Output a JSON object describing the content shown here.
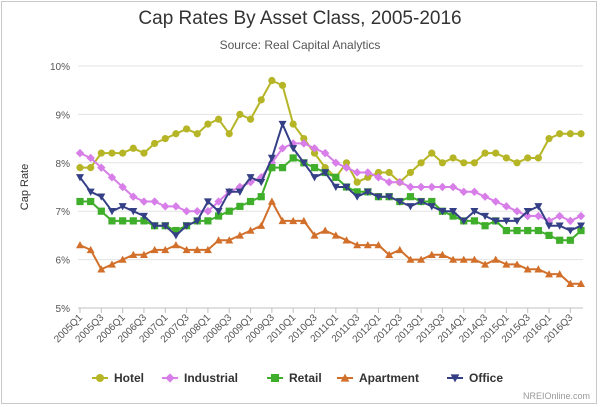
{
  "chart_data": {
    "type": "line",
    "title": "Cap Rates By Asset Class, 2005-2016",
    "subtitle": "Source: Real Capital Analytics",
    "ylabel": "Cap Rate",
    "xlabel": "",
    "ylim": [
      5,
      10
    ],
    "yticks": [
      "5%",
      "6%",
      "7%",
      "8%",
      "9%",
      "10%"
    ],
    "grid": true,
    "legend_position": "bottom",
    "credit": "NREIOnline.com",
    "x": [
      "2005Q1",
      "2005Q2",
      "2005Q3",
      "2005Q4",
      "2006Q1",
      "2006Q2",
      "2006Q3",
      "2006Q4",
      "2007Q1",
      "2007Q2",
      "2007Q3",
      "2007Q4",
      "2008Q1",
      "2008Q2",
      "2008Q3",
      "2008Q4",
      "2009Q1",
      "2009Q2",
      "2009Q3",
      "2009Q4",
      "2010Q1",
      "2010Q2",
      "2010Q3",
      "2010Q4",
      "2011Q1",
      "2011Q2",
      "2011Q3",
      "2011Q4",
      "2012Q1",
      "2012Q2",
      "2012Q3",
      "2012Q4",
      "2013Q1",
      "2013Q2",
      "2013Q3",
      "2013Q4",
      "2014Q1",
      "2014Q2",
      "2014Q3",
      "2014Q4",
      "2015Q1",
      "2015Q2",
      "2015Q3",
      "2015Q4",
      "2016Q1",
      "2016Q2",
      "2016Q3",
      "2016Q4"
    ],
    "x_tick_labels": [
      "2005Q1",
      "2005Q3",
      "2006Q1",
      "2006Q3",
      "2007Q1",
      "2007Q3",
      "2008Q1",
      "2008Q3",
      "2009Q1",
      "2009Q3",
      "2010Q1",
      "2010Q3",
      "2011Q1",
      "2011Q3",
      "2012Q1",
      "2012Q3",
      "2013Q1",
      "2013Q3",
      "2014Q1",
      "2014Q3",
      "2015Q1",
      "2015Q3",
      "2016Q1",
      "2016Q3"
    ],
    "series": [
      {
        "name": "Hotel",
        "color": "#b5b526",
        "marker": "circle",
        "values": [
          7.9,
          7.9,
          8.2,
          8.2,
          8.2,
          8.3,
          8.2,
          8.4,
          8.5,
          8.6,
          8.7,
          8.6,
          8.8,
          8.9,
          8.6,
          9.0,
          8.9,
          9.3,
          9.7,
          9.6,
          8.8,
          8.5,
          8.2,
          7.9,
          7.7,
          8.0,
          7.6,
          7.7,
          7.8,
          7.8,
          7.6,
          7.8,
          8.0,
          8.2,
          8.0,
          8.1,
          8.0,
          8.0,
          8.2,
          8.2,
          8.1,
          8.0,
          8.1,
          8.1,
          8.5,
          8.6,
          8.6,
          8.6
        ]
      },
      {
        "name": "Industrial",
        "color": "#d77ee8",
        "marker": "diamond",
        "values": [
          8.2,
          8.1,
          7.9,
          7.7,
          7.5,
          7.3,
          7.2,
          7.2,
          7.1,
          7.1,
          7.0,
          7.0,
          7.0,
          7.2,
          7.4,
          7.5,
          7.6,
          7.7,
          8.0,
          8.3,
          8.4,
          8.4,
          8.3,
          8.2,
          8.0,
          7.9,
          7.8,
          7.8,
          7.7,
          7.6,
          7.6,
          7.5,
          7.5,
          7.5,
          7.5,
          7.5,
          7.4,
          7.4,
          7.3,
          7.2,
          7.1,
          7.0,
          6.9,
          6.9,
          6.8,
          6.9,
          6.8,
          6.9
        ]
      },
      {
        "name": "Retail",
        "color": "#3fae2a",
        "marker": "square",
        "values": [
          7.2,
          7.2,
          7.0,
          6.8,
          6.8,
          6.8,
          6.8,
          6.7,
          6.7,
          6.6,
          6.7,
          6.8,
          6.8,
          6.9,
          7.0,
          7.1,
          7.2,
          7.3,
          7.9,
          7.9,
          8.1,
          8.0,
          7.9,
          7.8,
          7.7,
          7.5,
          7.4,
          7.4,
          7.3,
          7.3,
          7.2,
          7.3,
          7.2,
          7.2,
          7.0,
          6.9,
          6.8,
          6.8,
          6.7,
          6.8,
          6.6,
          6.6,
          6.6,
          6.6,
          6.5,
          6.4,
          6.4,
          6.6
        ]
      },
      {
        "name": "Apartment",
        "color": "#d2702b",
        "marker": "triangle",
        "values": [
          6.3,
          6.2,
          5.8,
          5.9,
          6.0,
          6.1,
          6.1,
          6.2,
          6.2,
          6.3,
          6.2,
          6.2,
          6.2,
          6.4,
          6.4,
          6.5,
          6.6,
          6.7,
          7.2,
          6.8,
          6.8,
          6.8,
          6.5,
          6.6,
          6.5,
          6.4,
          6.3,
          6.3,
          6.3,
          6.1,
          6.2,
          6.0,
          6.0,
          6.1,
          6.1,
          6.0,
          6.0,
          6.0,
          5.9,
          6.0,
          5.9,
          5.9,
          5.8,
          5.8,
          5.7,
          5.7,
          5.5,
          5.5
        ]
      },
      {
        "name": "Office",
        "color": "#343f86",
        "marker": "triangle-down",
        "values": [
          7.7,
          7.4,
          7.3,
          7.0,
          7.1,
          7.0,
          6.9,
          6.7,
          6.7,
          6.5,
          6.7,
          6.8,
          7.2,
          7.0,
          7.4,
          7.4,
          7.7,
          7.6,
          8.1,
          8.8,
          8.3,
          8.0,
          7.7,
          7.8,
          7.5,
          7.5,
          7.3,
          7.4,
          7.3,
          7.3,
          7.2,
          7.1,
          7.2,
          7.1,
          7.0,
          7.0,
          6.8,
          7.0,
          6.9,
          6.8,
          6.8,
          6.8,
          7.0,
          7.1,
          6.7,
          6.7,
          6.6,
          6.7
        ]
      }
    ]
  }
}
